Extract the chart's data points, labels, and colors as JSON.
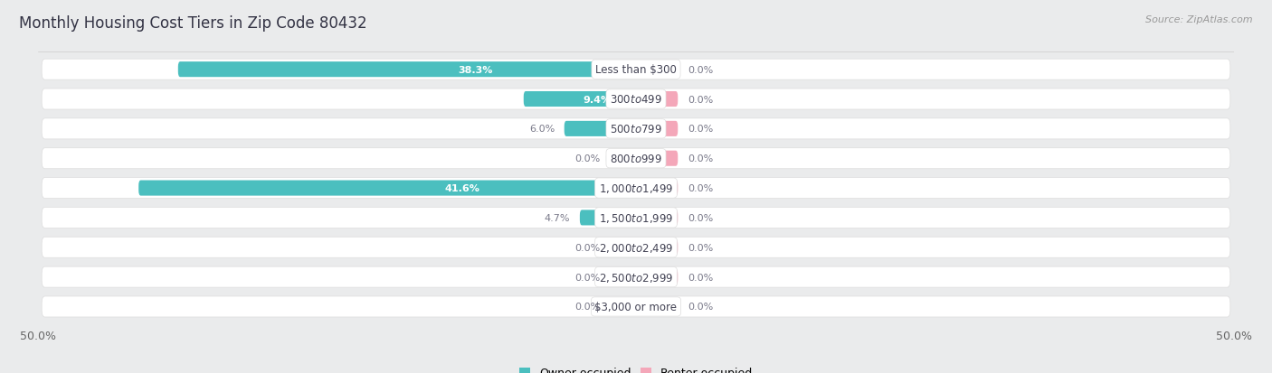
{
  "title": "Monthly Housing Cost Tiers in Zip Code 80432",
  "source": "Source: ZipAtlas.com",
  "categories": [
    "Less than $300",
    "$300 to $499",
    "$500 to $799",
    "$800 to $999",
    "$1,000 to $1,499",
    "$1,500 to $1,999",
    "$2,000 to $2,499",
    "$2,500 to $2,999",
    "$3,000 or more"
  ],
  "owner_values": [
    38.3,
    9.4,
    6.0,
    0.0,
    41.6,
    4.7,
    0.0,
    0.0,
    0.0
  ],
  "renter_values": [
    0.0,
    0.0,
    0.0,
    0.0,
    0.0,
    0.0,
    0.0,
    0.0,
    0.0
  ],
  "owner_color": "#4BBFBF",
  "owner_color_stub": "#93D8D8",
  "renter_color": "#F4A7B9",
  "label_color_white": "#FFFFFF",
  "label_color_dark": "#7A7A8A",
  "bg_color": "#EAEBEC",
  "row_bg_color": "#FFFFFF",
  "axis_limit": 50.0,
  "title_fontsize": 12,
  "tick_fontsize": 9,
  "bar_label_fontsize": 8,
  "category_fontsize": 8.5,
  "legend_fontsize": 9,
  "source_fontsize": 8,
  "stub_bar_width": 3.5,
  "zero_bar_stub": 2.5
}
